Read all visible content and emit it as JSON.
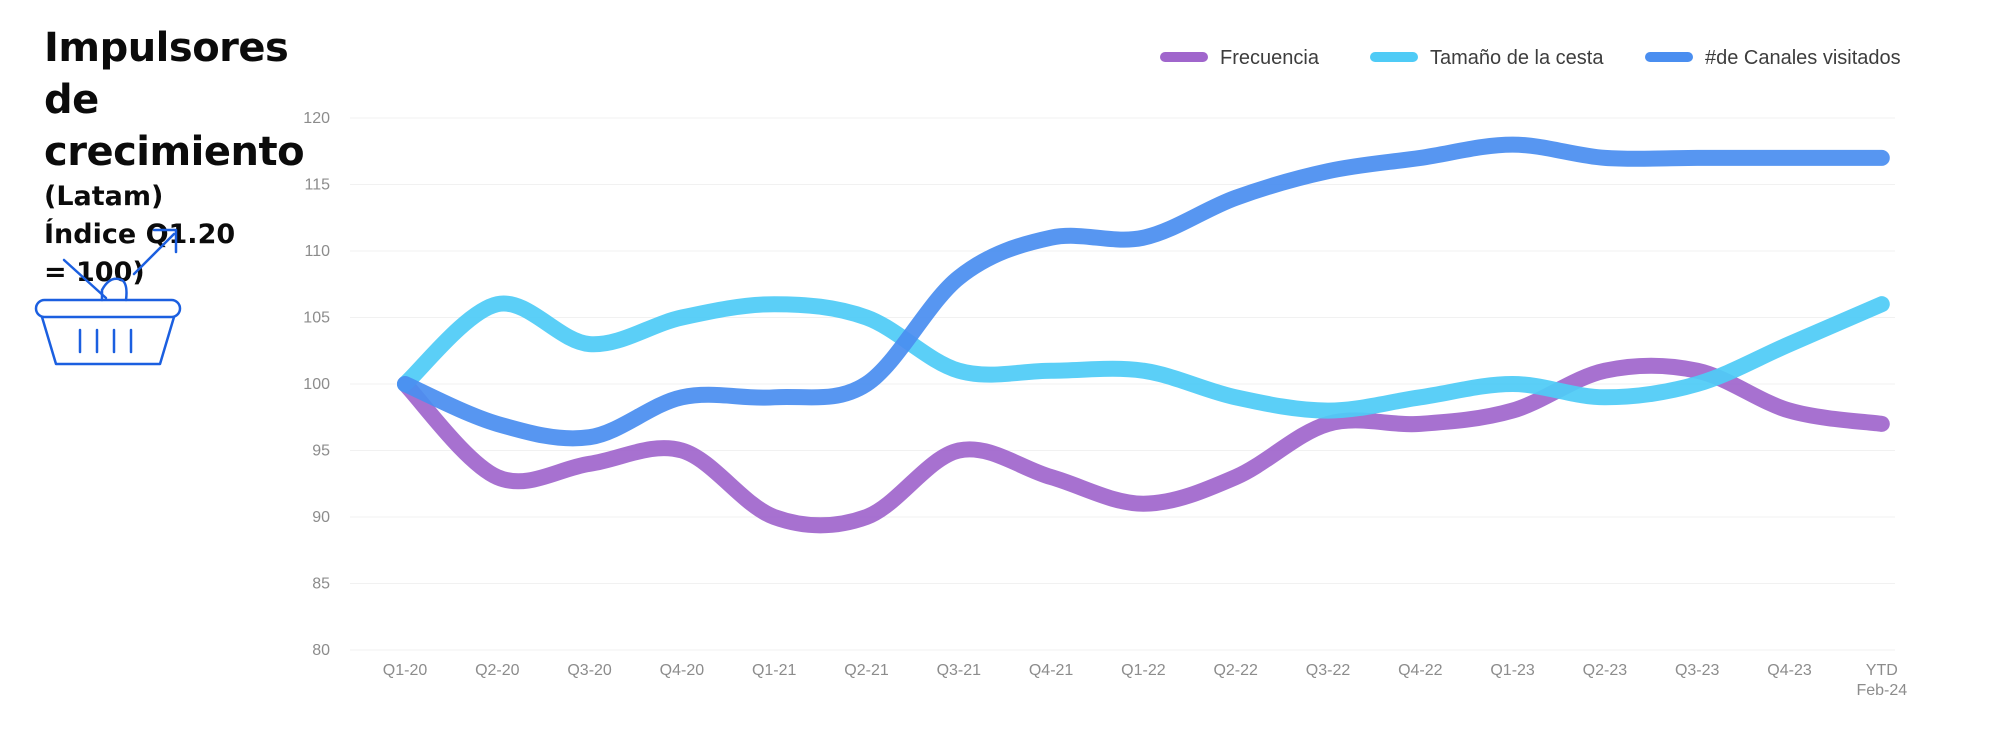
{
  "title": {
    "line1": "Impulsores de",
    "line2": "crecimiento",
    "line3": "(Latam)",
    "line4": "Índice Q1.20",
    "line5": "= 100)"
  },
  "icons": {
    "basket": "shopping-basket-growth-icon"
  },
  "chart_data": {
    "type": "line",
    "categories": [
      "Q1-20",
      "Q2-20",
      "Q3-20",
      "Q4-20",
      "Q1-21",
      "Q2-21",
      "Q3-21",
      "Q4-21",
      "Q1-22",
      "Q2-22",
      "Q3-22",
      "Q4-22",
      "Q1-23",
      "Q2-23",
      "Q3-23",
      "Q4-23",
      "YTD Feb-24"
    ],
    "series": [
      {
        "name": "Frecuencia",
        "color": "#a066cc",
        "values": [
          100,
          93,
          94,
          95,
          90,
          90,
          95,
          93,
          91,
          93,
          97,
          97,
          98,
          101,
          101,
          98,
          97
        ]
      },
      {
        "name": "Tamaño de la cesta",
        "color": "#4fcbf6",
        "values": [
          100,
          106,
          103,
          105,
          106,
          105,
          101,
          101,
          101,
          99,
          98,
          99,
          100,
          99,
          100,
          103,
          106
        ]
      },
      {
        "name": "#de Canales visitados",
        "color": "#4a8ef0",
        "values": [
          100,
          97,
          96,
          99,
          99,
          100,
          108,
          111,
          111,
          114,
          116,
          117,
          118,
          117,
          117,
          117,
          117
        ]
      }
    ],
    "yticks": [
      80,
      85,
      90,
      95,
      100,
      105,
      110,
      115,
      120
    ],
    "ylim": [
      80,
      120
    ],
    "grid": true,
    "legend_position": "top-right"
  }
}
